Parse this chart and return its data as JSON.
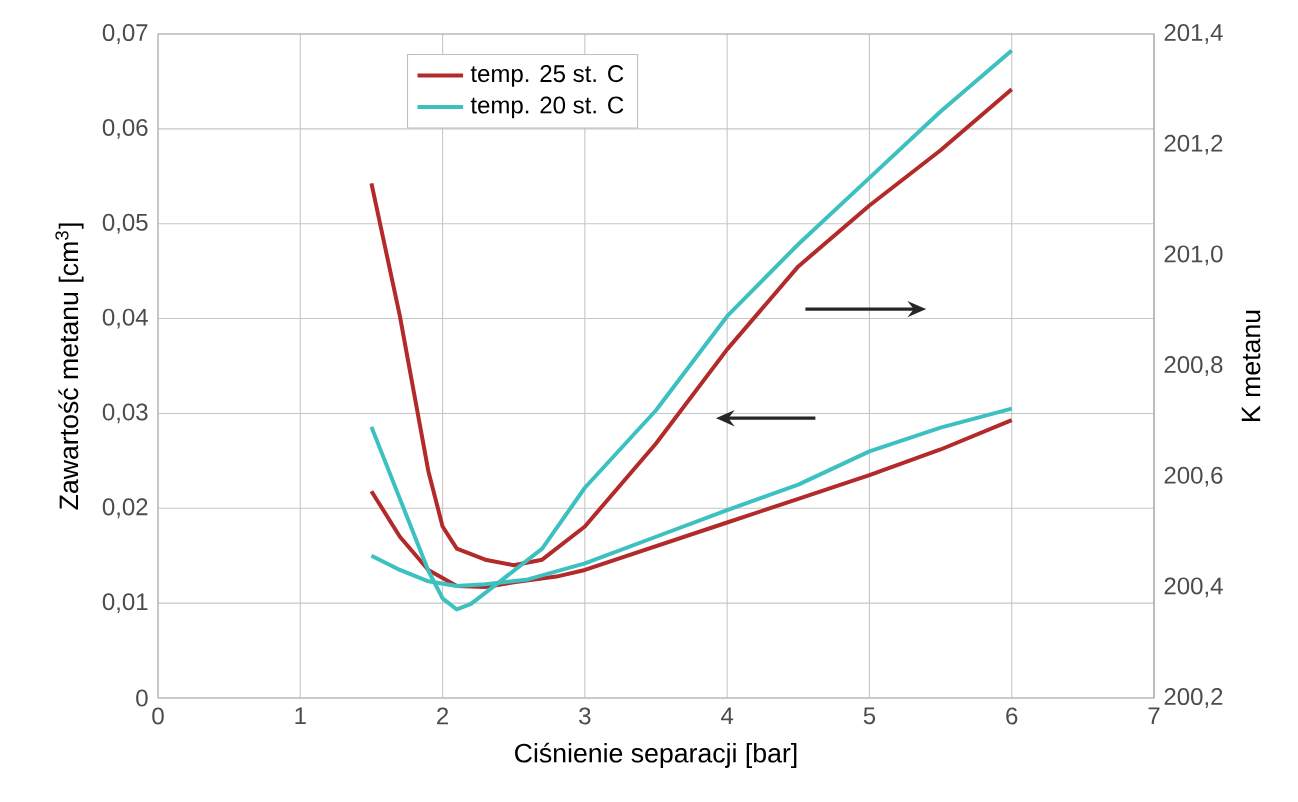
{
  "chart_data": {
    "type": "line",
    "xlabel": "Ciśnienie separacji [bar]",
    "ylabel": "Zawartość metanu [cm$^{3}$]",
    "y2label": "K metanu",
    "xlim": [
      0,
      7
    ],
    "xticks": [
      0,
      1,
      2,
      3,
      4,
      5,
      6,
      7
    ],
    "ylim": [
      0,
      0.07
    ],
    "yticks": [
      0,
      {
        "value": 0.01,
        "label": "0,01"
      },
      {
        "value": 0.02,
        "label": "0,02"
      },
      {
        "value": 0.03,
        "label": "0,03"
      },
      {
        "value": 0.04,
        "label": "0,04"
      },
      {
        "value": 0.05,
        "label": "0,05"
      },
      {
        "value": 0.06,
        "label": "0,06"
      },
      {
        "value": 0.07,
        "label": "0,07"
      }
    ],
    "y2lim": [
      200.2,
      201.4
    ],
    "y2ticks": [
      {
        "value": 200.2,
        "label": "200,2"
      },
      {
        "value": 200.4,
        "label": "200,4"
      },
      {
        "value": 200.6,
        "label": "200,6"
      },
      {
        "value": 200.8,
        "label": "200,8"
      },
      {
        "value": 201.0,
        "label": "201,0"
      },
      {
        "value": 201.2,
        "label": "201,2"
      },
      {
        "value": 201.4,
        "label": "201,4"
      }
    ],
    "grid": true,
    "legend": "top",
    "series": [
      {
        "name": "temp. 25 st. C",
        "color": "#b22a2a",
        "x": [
          1.5,
          1.7,
          1.9,
          2.1,
          2.3,
          2.5,
          2.8,
          3.0,
          3.5,
          4.0,
          4.5,
          5.0,
          5.5,
          6.0
        ],
        "values": [
          0.0218,
          0.017,
          0.0135,
          0.0118,
          0.0117,
          0.0122,
          0.0128,
          0.0135,
          0.016,
          0.0185,
          0.021,
          0.0235,
          0.0262,
          0.0293
        ]
      },
      {
        "name": "temp. 20 st. C",
        "color": "#3cc0c0",
        "x": [
          1.5,
          1.7,
          1.9,
          2.1,
          2.3,
          2.6,
          3.0,
          3.5,
          4.0,
          4.5,
          5.0,
          5.5,
          6.0
        ],
        "values": [
          0.015,
          0.0135,
          0.0123,
          0.0118,
          0.012,
          0.0125,
          0.0142,
          0.017,
          0.0198,
          0.0225,
          0.026,
          0.0285,
          0.0305
        ]
      },
      {
        "color": "#b22a2a",
        "axis": "y2",
        "x": [
          1.5,
          1.7,
          1.8,
          1.9,
          2.0,
          2.1,
          2.3,
          2.5,
          2.7,
          3.0,
          3.5,
          4.0,
          4.5,
          5.0,
          5.5,
          6.0
        ],
        "values": [
          201.13,
          200.89,
          200.75,
          200.61,
          200.51,
          200.47,
          200.45,
          200.44,
          200.45,
          200.51,
          200.66,
          200.83,
          200.98,
          201.09,
          201.19,
          201.3
        ]
      },
      {
        "color": "#3cc0c0",
        "axis": "y2",
        "x": [
          1.5,
          1.7,
          1.9,
          2.0,
          2.1,
          2.2,
          2.4,
          2.7,
          3.0,
          3.5,
          4.0,
          4.5,
          5.0,
          5.5,
          6.0
        ],
        "values": [
          200.69,
          200.56,
          200.43,
          200.38,
          200.36,
          200.37,
          200.41,
          200.47,
          200.58,
          200.72,
          200.89,
          201.02,
          201.14,
          201.26,
          201.37
        ]
      }
    ]
  }
}
